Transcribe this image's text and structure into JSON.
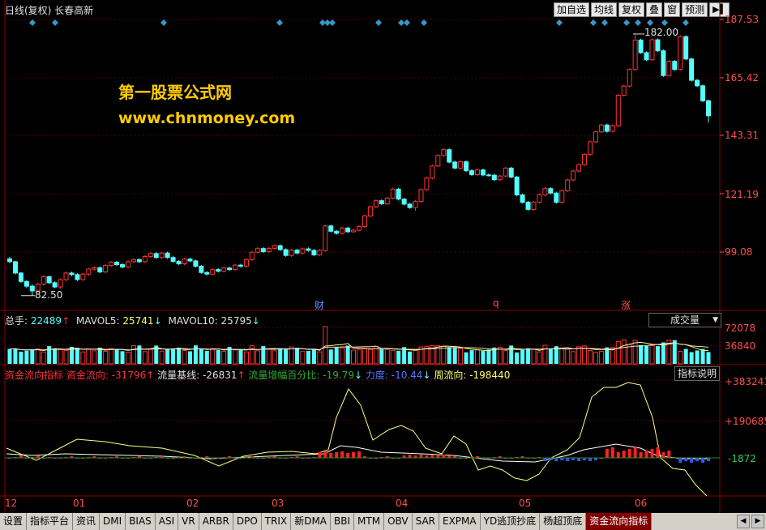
{
  "window": {
    "title": "日线(复权)  长春高新",
    "toolbar": [
      "加自选",
      "均线",
      "复权",
      "叠",
      "窗",
      "预测"
    ]
  },
  "annotation": {
    "line1": "第一股票公式网",
    "line2": "www.chnmoney.com"
  },
  "price_chart": {
    "y_ticks": [
      "187.53",
      "165.42",
      "143.31",
      "121.19",
      "99.08"
    ],
    "high_label": "182.00",
    "low_label": "82.50",
    "event_markers": [
      "财",
      "q",
      "涨"
    ],
    "up_color": "#ff3333",
    "down_color": "#54ffff"
  },
  "volume_panel": {
    "legend": {
      "total_label": "总手:",
      "total_value": "22489",
      "mavol5_label": "MAVOL5:",
      "mavol5_value": "25741",
      "mavol10_label": "MAVOL10:",
      "mavol10_value": "25795"
    },
    "selector_value": "成交量",
    "y_ticks": [
      "72078",
      "36840"
    ]
  },
  "indicator_panel": {
    "legend": {
      "name": "资金流向指标",
      "flow_label": "资金流向:",
      "flow_value": "-31796",
      "base_label": "流量基线:",
      "base_value": "-26831",
      "pct_label": "流量增幅百分比:",
      "pct_value": "-19.79",
      "force_label": "力度:",
      "force_value": "-10.44",
      "week_label": "周流向:",
      "week_value": "-198440"
    },
    "help_button": "指标说明",
    "y_ticks": [
      "+383241",
      "+190685",
      "-1872"
    ]
  },
  "x_axis": {
    "months": [
      "12",
      "01",
      "02",
      "03",
      "04",
      "05",
      "06"
    ]
  },
  "tabs": [
    "设置",
    "指标平台",
    "资讯",
    "DMI",
    "BIAS",
    "ASI",
    "VR",
    "ARBR",
    "DPO",
    "TRIX",
    "新DMA",
    "BBI",
    "MTM",
    "OBV",
    "SAR",
    "EXPMA",
    "YD逃顶抄底",
    "杨超顶底",
    "资金流向指标"
  ],
  "active_tab": "资金流向指标",
  "chart_data": {
    "type": "candlestick",
    "title": "日线(复权) 长春高新",
    "ylim": [
      77,
      190
    ],
    "candles": [
      [
        96.5,
        95.4,
        97.2,
        94.9
      ],
      [
        95.4,
        91.1,
        95.8,
        90.6
      ],
      [
        91.1,
        87.9,
        91.5,
        87.3
      ],
      [
        87.9,
        86.1,
        88.3,
        85.4
      ],
      [
        86.1,
        84.3,
        86.8,
        82.5
      ],
      [
        84.3,
        86.9,
        87.4,
        83.7
      ],
      [
        86.9,
        89.7,
        90.2,
        86.3
      ],
      [
        89.7,
        87.4,
        90.1,
        86.9
      ],
      [
        87.4,
        85.8,
        87.9,
        85.3
      ],
      [
        85.8,
        88.6,
        89.1,
        85.2
      ],
      [
        88.6,
        91.1,
        91.6,
        88.0
      ],
      [
        91.1,
        90.5,
        91.6,
        89.9
      ],
      [
        90.5,
        88.6,
        91.0,
        88.1
      ],
      [
        88.6,
        90.7,
        91.2,
        88.1
      ],
      [
        90.7,
        92.6,
        93.1,
        90.1
      ],
      [
        92.6,
        93.1,
        93.6,
        92.0
      ],
      [
        93.1,
        91.5,
        93.6,
        91.0
      ],
      [
        91.5,
        94.0,
        94.5,
        91.0
      ],
      [
        94.0,
        95.2,
        95.7,
        93.4
      ],
      [
        95.2,
        94.3,
        95.7,
        93.8
      ],
      [
        94.3,
        93.4,
        94.8,
        92.9
      ],
      [
        93.4,
        95.4,
        95.9,
        92.9
      ],
      [
        95.4,
        96.2,
        96.7,
        94.9
      ],
      [
        96.2,
        95.4,
        96.7,
        94.9
      ],
      [
        95.4,
        97.4,
        97.9,
        94.9
      ],
      [
        97.4,
        98.5,
        99.0,
        96.9
      ],
      [
        98.5,
        97.0,
        99.0,
        96.5
      ],
      [
        97.0,
        98.7,
        99.2,
        96.5
      ],
      [
        98.7,
        97.0,
        99.2,
        96.5
      ],
      [
        97.0,
        95.5,
        97.5,
        95.0
      ],
      [
        95.5,
        94.6,
        96.0,
        94.1
      ],
      [
        94.6,
        96.4,
        96.9,
        94.1
      ],
      [
        96.4,
        95.7,
        96.9,
        95.2
      ],
      [
        95.7,
        93.7,
        96.2,
        93.2
      ],
      [
        93.7,
        91.3,
        94.2,
        90.8
      ],
      [
        91.3,
        90.7,
        91.8,
        90.2
      ],
      [
        90.7,
        92.4,
        92.9,
        90.2
      ],
      [
        92.4,
        91.8,
        92.9,
        91.3
      ],
      [
        91.8,
        93.0,
        93.5,
        91.3
      ],
      [
        93.0,
        92.4,
        93.5,
        91.9
      ],
      [
        92.4,
        94.1,
        94.6,
        91.9
      ],
      [
        94.1,
        93.7,
        94.6,
        93.2
      ],
      [
        93.7,
        96.2,
        96.7,
        93.2
      ],
      [
        96.2,
        99.0,
        99.5,
        95.7
      ],
      [
        99.0,
        100.4,
        100.9,
        98.5
      ],
      [
        100.4,
        99.2,
        100.9,
        98.7
      ],
      [
        99.2,
        100.5,
        101.0,
        98.7
      ],
      [
        100.5,
        101.5,
        102.0,
        100.0
      ],
      [
        101.5,
        100.0,
        102.0,
        99.5
      ],
      [
        100.0,
        97.8,
        100.5,
        97.3
      ],
      [
        97.8,
        99.8,
        100.3,
        97.3
      ],
      [
        99.8,
        98.7,
        100.3,
        98.2
      ],
      [
        98.7,
        100.3,
        100.8,
        98.2
      ],
      [
        100.3,
        99.7,
        100.8,
        99.2
      ],
      [
        99.7,
        98.0,
        100.2,
        97.5
      ],
      [
        98.0,
        99.7,
        100.2,
        97.5
      ],
      [
        99.7,
        109.0,
        109.5,
        99.2
      ],
      [
        109.0,
        107.0,
        109.5,
        106.5
      ],
      [
        107.0,
        106.2,
        107.5,
        105.7
      ],
      [
        106.2,
        108.2,
        108.7,
        105.7
      ],
      [
        108.2,
        106.8,
        108.7,
        106.3
      ],
      [
        106.8,
        107.4,
        107.9,
        106.3
      ],
      [
        107.4,
        108.8,
        109.3,
        106.9
      ],
      [
        108.8,
        112.8,
        113.3,
        108.3
      ],
      [
        112.8,
        116.3,
        116.8,
        112.3
      ],
      [
        116.3,
        118.6,
        119.1,
        115.8
      ],
      [
        118.6,
        117.4,
        119.1,
        116.9
      ],
      [
        117.4,
        119.6,
        120.1,
        116.9
      ],
      [
        119.6,
        123.0,
        123.5,
        119.1
      ],
      [
        123.0,
        119.2,
        123.5,
        118.7
      ],
      [
        119.2,
        117.3,
        119.7,
        116.8
      ],
      [
        117.3,
        116.0,
        117.8,
        115.5
      ],
      [
        116.0,
        118.3,
        118.8,
        114.8
      ],
      [
        118.3,
        122.8,
        123.3,
        117.8
      ],
      [
        122.8,
        127.2,
        127.7,
        122.3
      ],
      [
        127.2,
        131.8,
        132.3,
        126.7
      ],
      [
        131.8,
        135.8,
        136.3,
        131.3
      ],
      [
        135.8,
        138.0,
        138.5,
        135.3
      ],
      [
        138.0,
        133.3,
        138.5,
        132.8
      ],
      [
        133.3,
        131.0,
        133.8,
        130.5
      ],
      [
        131.0,
        133.4,
        133.9,
        130.5
      ],
      [
        133.4,
        130.0,
        133.9,
        129.5
      ],
      [
        130.0,
        128.5,
        130.5,
        128.0
      ],
      [
        128.5,
        130.3,
        130.8,
        128.0
      ],
      [
        130.3,
        128.4,
        130.8,
        127.9
      ],
      [
        128.4,
        128.3,
        128.9,
        127.8
      ],
      [
        128.3,
        126.6,
        128.8,
        126.1
      ],
      [
        126.6,
        128.0,
        128.5,
        126.1
      ],
      [
        128.0,
        131.0,
        131.5,
        127.5
      ],
      [
        131.0,
        127.6,
        131.5,
        127.1
      ],
      [
        127.6,
        120.8,
        128.1,
        120.3
      ],
      [
        120.8,
        118.0,
        121.3,
        117.5
      ],
      [
        118.0,
        115.3,
        118.5,
        114.8
      ],
      [
        115.3,
        118.0,
        118.5,
        114.8
      ],
      [
        118.0,
        120.8,
        121.3,
        117.5
      ],
      [
        120.8,
        123.2,
        123.7,
        120.3
      ],
      [
        123.2,
        121.5,
        123.7,
        121.0
      ],
      [
        121.5,
        118.0,
        122.0,
        117.5
      ],
      [
        118.0,
        122.4,
        122.9,
        117.5
      ],
      [
        122.4,
        126.5,
        127.0,
        121.9
      ],
      [
        126.5,
        129.9,
        130.4,
        126.0
      ],
      [
        129.9,
        132.3,
        132.8,
        129.4
      ],
      [
        132.3,
        136.2,
        136.7,
        131.8
      ],
      [
        136.2,
        141.0,
        141.5,
        135.7
      ],
      [
        141.0,
        144.8,
        145.3,
        140.5
      ],
      [
        144.8,
        147.4,
        147.9,
        144.3
      ],
      [
        147.4,
        145.0,
        147.9,
        144.5
      ],
      [
        145.0,
        147.1,
        147.6,
        144.5
      ],
      [
        147.1,
        158.7,
        159.2,
        146.6
      ],
      [
        158.7,
        162.2,
        162.7,
        158.2
      ],
      [
        162.2,
        168.5,
        169.0,
        161.7
      ],
      [
        168.5,
        179.7,
        182.0,
        168.0
      ],
      [
        179.7,
        174.9,
        180.2,
        174.4
      ],
      [
        174.9,
        172.2,
        175.4,
        171.7
      ],
      [
        172.2,
        179.8,
        180.3,
        171.7
      ],
      [
        179.8,
        175.6,
        180.3,
        175.1
      ],
      [
        175.6,
        166.2,
        176.1,
        165.7
      ],
      [
        166.2,
        171.6,
        172.1,
        165.7
      ],
      [
        171.6,
        168.5,
        172.1,
        168.0
      ],
      [
        168.5,
        181.0,
        181.5,
        168.0
      ],
      [
        181.0,
        172.5,
        181.5,
        172.0
      ],
      [
        172.5,
        164.4,
        173.0,
        163.9
      ],
      [
        164.4,
        162.3,
        164.9,
        161.8
      ],
      [
        162.3,
        156.6,
        162.8,
        156.1
      ],
      [
        156.6,
        150.9,
        157.1,
        148.3
      ]
    ]
  }
}
